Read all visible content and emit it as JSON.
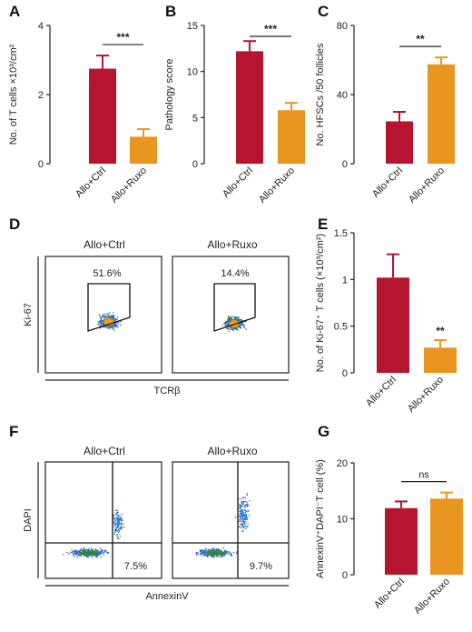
{
  "colors": {
    "ctrl": "#b5152f",
    "ruxo": "#e8961f",
    "axis": "#222222"
  },
  "panels": {
    "A": {
      "letter": "A"
    },
    "B": {
      "letter": "B"
    },
    "C": {
      "letter": "C"
    },
    "D": {
      "letter": "D",
      "columns": [
        "Allo+Ctrl",
        "Allo+Ruxo"
      ],
      "gates": [
        "51.6%",
        "14.4%"
      ],
      "ylabel": "Ki-67",
      "xlabel": "TCRβ"
    },
    "E": {
      "letter": "E"
    },
    "F": {
      "letter": "F",
      "columns": [
        "Allo+Ctrl",
        "Allo+Ruxo"
      ],
      "gates": [
        "7.5%",
        "9.7%"
      ],
      "ylabel": "DAPI",
      "xlabel": "AnnexinV"
    },
    "G": {
      "letter": "G"
    }
  },
  "chart_data": [
    {
      "id": "A",
      "type": "bar",
      "categories": [
        "Allo+Ctrl",
        "Allo+Ruxo"
      ],
      "values": [
        2.75,
        0.78
      ],
      "errors": [
        0.38,
        0.22
      ],
      "ylabel": "No. of T cells ×10³/cm²",
      "ylim": [
        0,
        4
      ],
      "yticks": [
        "0",
        "2",
        "4"
      ],
      "significance": "***"
    },
    {
      "id": "B",
      "type": "bar",
      "categories": [
        "Allo+Ctrl",
        "Allo+Ruxo"
      ],
      "values": [
        12.2,
        5.8
      ],
      "errors": [
        1.1,
        0.8
      ],
      "ylabel": "Pathology score",
      "ylim": [
        0,
        15
      ],
      "yticks": [
        "0",
        "5",
        "10",
        "15"
      ],
      "significance": "***"
    },
    {
      "id": "C",
      "type": "bar",
      "categories": [
        "Allo+Ctrl",
        "Allo+Ruxo"
      ],
      "values": [
        24.5,
        57.5
      ],
      "errors": [
        5.5,
        4.0
      ],
      "ylabel": "No. HFSCs /50 follicles",
      "ylim": [
        0,
        80
      ],
      "yticks": [
        "0",
        "40",
        "80"
      ],
      "significance": "**"
    },
    {
      "id": "E",
      "type": "bar",
      "categories": [
        "Allo+Ctrl",
        "Allo+Ruxo"
      ],
      "values": [
        1.02,
        0.27
      ],
      "errors": [
        0.25,
        0.08
      ],
      "ylabel": "No. of Ki-67⁺ T cells (×10³/cm²)",
      "ylim": [
        0,
        1.5
      ],
      "yticks": [
        "0",
        "0.5",
        "1",
        "1.5"
      ],
      "significance": "**"
    },
    {
      "id": "G",
      "type": "bar",
      "categories": [
        "Allo+Ctrl",
        "Allo+Ruxo"
      ],
      "values": [
        11.9,
        13.6
      ],
      "errors": [
        1.2,
        1.1
      ],
      "ylabel": "AnnexinV⁺DAPI⁻T cell (%)",
      "ylim": [
        0,
        20
      ],
      "yticks": [
        "0",
        "10",
        "20"
      ],
      "significance": "ns"
    }
  ]
}
